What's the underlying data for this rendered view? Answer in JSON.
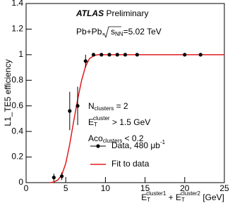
{
  "chart_data": {
    "type": "scatter",
    "y_label": "L1_TE5 efficiency",
    "x_label": [
      "E",
      "T",
      "cluster1",
      " + E",
      "T",
      "cluster2",
      " [GeV]"
    ],
    "brand": "ATLAS",
    "brand_note": "Preliminary",
    "collision": [
      "Pb+Pb, ",
      "s",
      "NN",
      "=5.02 TeV"
    ],
    "annotations": [
      [
        "N",
        "clusters",
        " = 2"
      ],
      [
        "E",
        "T",
        "cluster",
        " > 1.5 GeV"
      ],
      [
        "Aco",
        "clusters",
        " < 0.2"
      ]
    ],
    "xlim": [
      0,
      25
    ],
    "xticks": [
      0,
      5,
      10,
      15,
      20,
      25
    ],
    "ylim": [
      0,
      1.4
    ],
    "yticks": [
      0,
      0.2,
      0.4,
      0.6,
      0.8,
      1,
      1.2,
      1.4
    ],
    "series": [
      {
        "name": "Data, 480 μb",
        "name_superscript": "-1",
        "color": "#000000",
        "x": [
          3.5,
          4.5,
          5.5,
          6.5,
          7.5,
          8.5,
          9.5,
          10.5,
          11.5,
          12.5,
          14,
          20,
          22
        ],
        "values": [
          0.04,
          0.05,
          0.56,
          0.6,
          0.95,
          1,
          1,
          1,
          1,
          1,
          1,
          1,
          1
        ],
        "errors": [
          0.03,
          0.03,
          0.15,
          0.15,
          0.05,
          0,
          0,
          0,
          0,
          0,
          0,
          0,
          0
        ]
      },
      {
        "name": "Fit to data",
        "color": "#e31a1c",
        "x": [
          3,
          3.5,
          4,
          4.5,
          5,
          5.5,
          6,
          6.5,
          7,
          7.5,
          8,
          8.5,
          9,
          10,
          25
        ],
        "values": [
          0,
          0.005,
          0.02,
          0.06,
          0.15,
          0.3,
          0.48,
          0.65,
          0.8,
          0.91,
          0.97,
          0.99,
          1,
          1,
          1
        ]
      }
    ]
  }
}
